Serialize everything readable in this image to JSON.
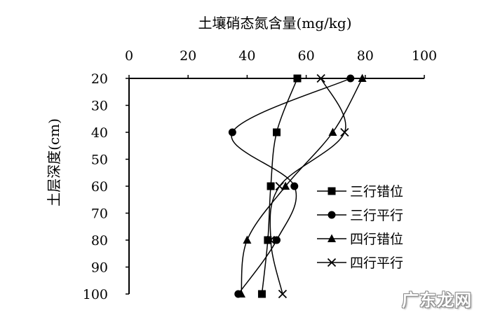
{
  "chart_data": {
    "type": "line",
    "title": "土壤硝态氮含量(mg/kg)",
    "xlabel": "土壤硝态氮含量(mg/kg)",
    "ylabel": "土层深度(cm)",
    "xlim": [
      0,
      100
    ],
    "ylim": [
      20,
      100
    ],
    "x_axis_position": "top",
    "y_axis_inverted": true,
    "x_ticks": [
      "0",
      "20",
      "40",
      "60",
      "80",
      "100"
    ],
    "y_ticks": [
      "20",
      "30",
      "40",
      "50",
      "60",
      "70",
      "80",
      "90",
      "100"
    ],
    "legend_position": "bottom-right",
    "grid": false,
    "depths": [
      20,
      40,
      60,
      80,
      100
    ],
    "series": [
      {
        "name": "三行错位",
        "marker": "square",
        "x": [
          57,
          50,
          48,
          47,
          45
        ]
      },
      {
        "name": "三行平行",
        "marker": "circle",
        "x": [
          75,
          35,
          56,
          50,
          37
        ]
      },
      {
        "name": "四行错位",
        "marker": "triangle",
        "x": [
          79,
          69,
          53,
          40,
          38
        ]
      },
      {
        "name": "四行平行",
        "marker": "x",
        "x": [
          65,
          73,
          51,
          48,
          52
        ]
      }
    ]
  },
  "watermark": "广东龙网"
}
